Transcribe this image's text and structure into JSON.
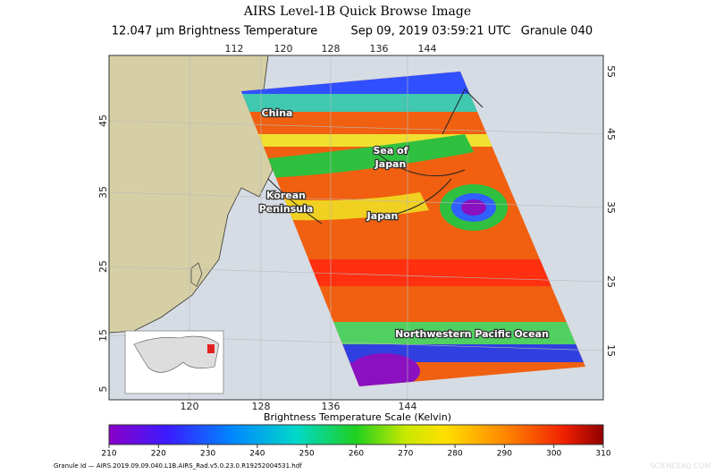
{
  "header": {
    "title": "AIRS Level-1B Quick Browse Image",
    "subtitle": [
      "12.047 μm Brightness Temperature",
      "Sep 09, 2019 03:59:21 UTC",
      "Granule 040"
    ]
  },
  "map": {
    "top_ticks": [
      112,
      120,
      128,
      136,
      144
    ],
    "bottom_ticks": [
      120,
      128,
      136,
      144
    ],
    "left_ticks": [
      45,
      35,
      25,
      15,
      5
    ],
    "right_ticks": [
      55,
      45,
      35,
      25,
      15
    ],
    "labels": [
      [
        "China"
      ],
      [
        "Sea of",
        "Japan"
      ],
      [
        "Korean",
        "Peninsula"
      ],
      [
        "Japan"
      ],
      [
        "Northwestern Pacific Ocean"
      ]
    ]
  },
  "colorbar": {
    "title": "Brightness Temperature Scale (Kelvin)",
    "ticks": [
      210,
      220,
      230,
      240,
      250,
      260,
      270,
      280,
      290,
      300,
      310
    ]
  },
  "footer": "Granule Id — AIRS.2019.09.09.040.L1B.AIRS_Rad.v5.0.23.0.R19252004531.hdf",
  "watermark": "SCIENCEAQ.COM"
}
